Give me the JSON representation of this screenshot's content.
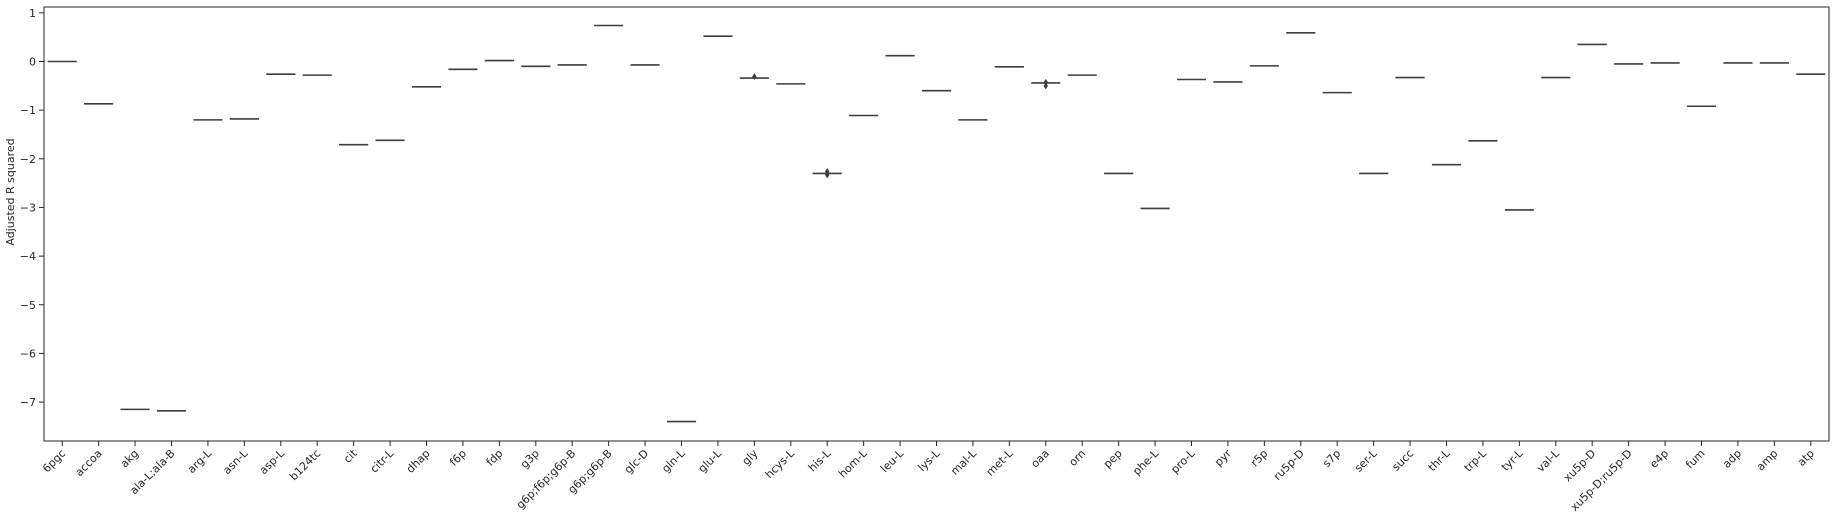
{
  "chart_data": {
    "type": "box",
    "ylabel": "Adjusted R squared",
    "ylim": [
      -7.8,
      1.12
    ],
    "yticks": [
      1,
      0,
      -1,
      -2,
      -3,
      -4,
      -5,
      -6,
      -7
    ],
    "ytick_labels": [
      "1",
      "0",
      "−1",
      "−2",
      "−3",
      "−4",
      "−5",
      "−6",
      "−7"
    ],
    "categories": [
      "6pgc",
      "accoa",
      "akg",
      "ala-L;ala-B",
      "arg-L",
      "asn-L",
      "asp-L",
      "b124tc",
      "cit",
      "citr-L",
      "dhap",
      "f6p",
      "fdp",
      "g3p",
      "g6p;f6p;g6p-B",
      "g6p;g6p-B",
      "glc-D",
      "gln-L",
      "glu-L",
      "gly",
      "hcys-L",
      "his-L",
      "hom-L",
      "leu-L",
      "lys-L",
      "mal-L",
      "met-L",
      "oaa",
      "orn",
      "pep",
      "phe-L",
      "pro-L",
      "pyr",
      "r5p",
      "ru5p-D",
      "s7p",
      "ser-L",
      "succ",
      "thr-L",
      "trp-L",
      "tyr-L",
      "val-L",
      "xu5p-D",
      "xu5p-D;ru5p-D",
      "e4p",
      "fum",
      "adp",
      "amp",
      "atp"
    ],
    "values": [
      0.0,
      -0.87,
      -7.15,
      -7.18,
      -1.2,
      -1.18,
      -0.26,
      -0.28,
      -1.71,
      -1.62,
      -0.52,
      -0.16,
      0.02,
      -0.1,
      -0.07,
      0.74,
      -0.07,
      -7.4,
      0.52,
      -0.34,
      -0.46,
      -2.3,
      -1.11,
      0.12,
      -0.6,
      -1.2,
      -0.11,
      -0.44,
      -0.28,
      -2.3,
      -3.02,
      -0.37,
      -0.42,
      -0.09,
      0.59,
      -0.64,
      -2.3,
      -0.33,
      -2.12,
      -1.63,
      -3.05,
      -0.33,
      0.35,
      -0.05,
      -0.03,
      -0.92,
      -0.03,
      -0.03,
      -0.26
    ],
    "outliers": [
      {
        "category": "his-L",
        "values": [
          -2.26,
          -2.33
        ]
      },
      {
        "category": "oaa",
        "values": [
          -0.43,
          -0.5
        ]
      },
      {
        "category": "gly",
        "values": [
          -0.31
        ]
      }
    ],
    "grid": false,
    "colors": {
      "median": "#3d3d3d",
      "axis": "#262626",
      "outlier": "#3d3d3d"
    }
  }
}
